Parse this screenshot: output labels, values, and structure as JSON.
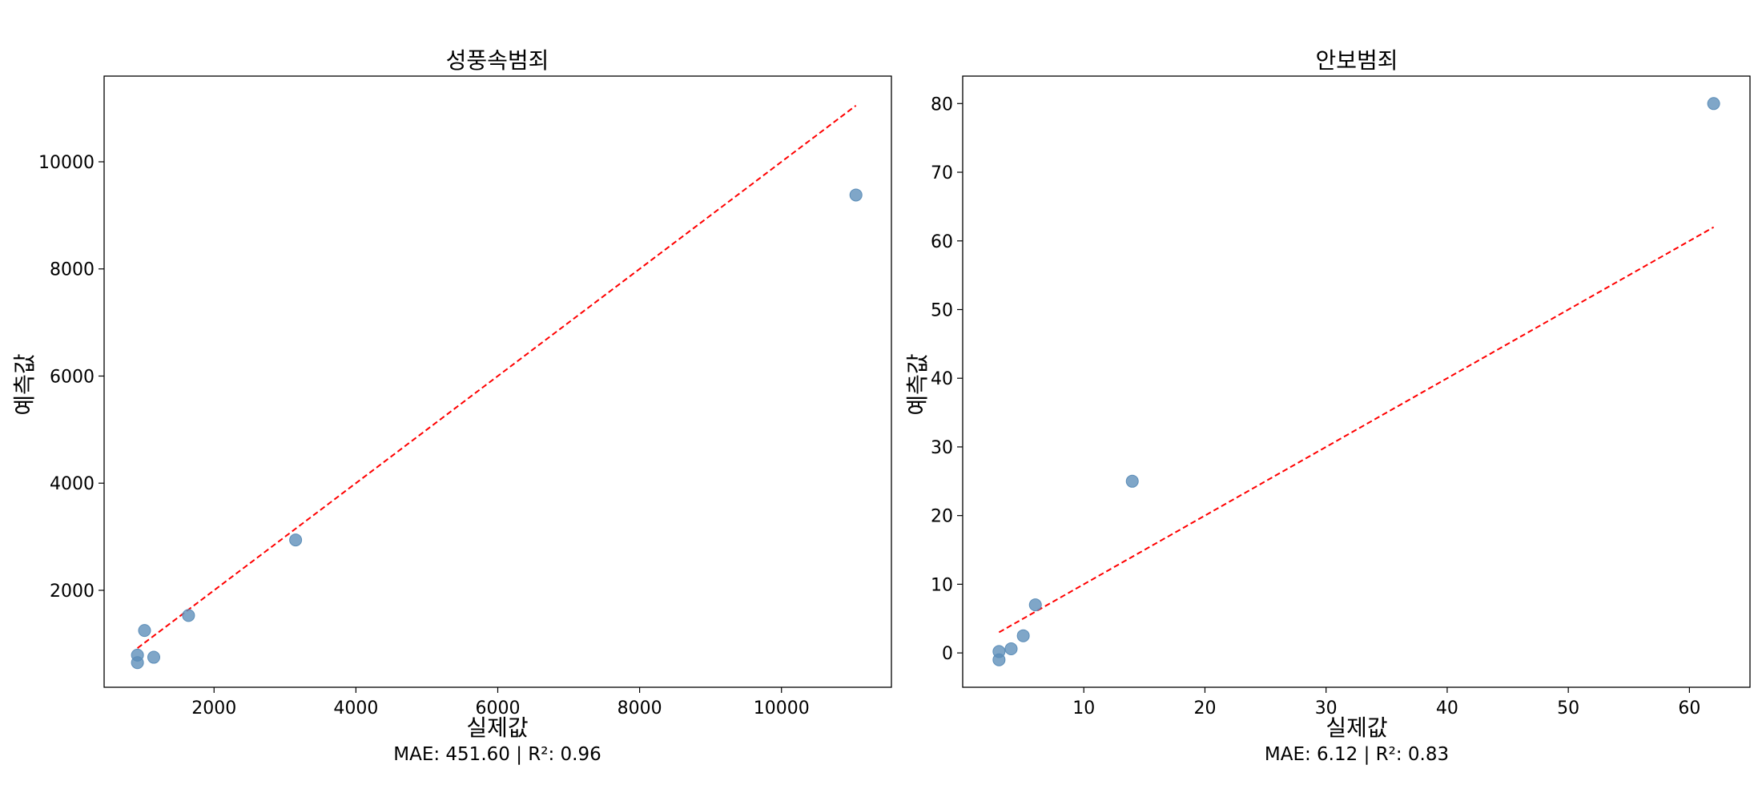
{
  "chart_data": [
    {
      "type": "scatter",
      "title": "성풍속범죄",
      "xlabel": "실제값",
      "ylabel": "예측값",
      "footer": "MAE: 451.60 | R²: 0.96",
      "xlim": [
        450,
        11550
      ],
      "ylim": [
        190,
        11600
      ],
      "xticks": [
        2000,
        4000,
        6000,
        8000,
        10000
      ],
      "yticks": [
        2000,
        4000,
        6000,
        8000,
        10000
      ],
      "points": [
        {
          "x": 920,
          "y": 650
        },
        {
          "x": 920,
          "y": 790
        },
        {
          "x": 1020,
          "y": 1250
        },
        {
          "x": 1150,
          "y": 750
        },
        {
          "x": 1640,
          "y": 1530
        },
        {
          "x": 3150,
          "y": 2940
        },
        {
          "x": 11050,
          "y": 9380
        }
      ],
      "reference_line": {
        "x": [
          920,
          11050
        ],
        "y": [
          920,
          11050
        ]
      },
      "point_color": "#5b8db8",
      "line_color": "#ff0000",
      "grid": false
    },
    {
      "type": "scatter",
      "title": "안보범죄",
      "xlabel": "실제값",
      "ylabel": "예측값",
      "footer": "MAE: 6.12 | R²: 0.83",
      "xlim": [
        0,
        65
      ],
      "ylim": [
        -5,
        84
      ],
      "xticks": [
        10,
        20,
        30,
        40,
        50,
        60
      ],
      "yticks": [
        0,
        10,
        20,
        30,
        40,
        50,
        60,
        70,
        80
      ],
      "points": [
        {
          "x": 3,
          "y": -1
        },
        {
          "x": 3,
          "y": 0.2
        },
        {
          "x": 4,
          "y": 0.6
        },
        {
          "x": 5,
          "y": 2.5
        },
        {
          "x": 6,
          "y": 7
        },
        {
          "x": 14,
          "y": 25
        },
        {
          "x": 62,
          "y": 80
        }
      ],
      "reference_line": {
        "x": [
          3,
          62
        ],
        "y": [
          3,
          62
        ]
      },
      "point_color": "#5b8db8",
      "line_color": "#ff0000",
      "grid": false
    }
  ]
}
